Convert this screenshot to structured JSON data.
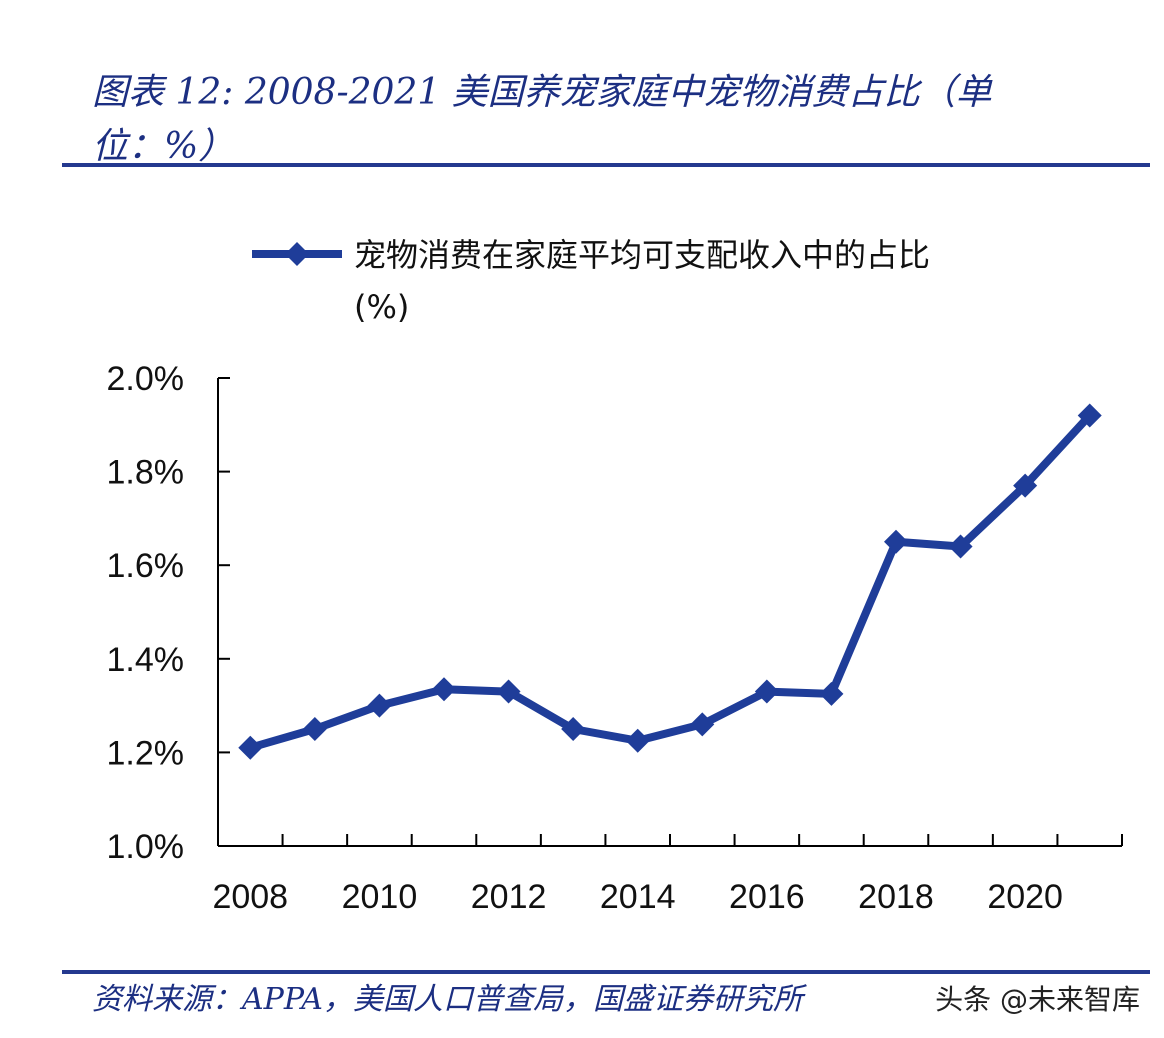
{
  "title": "图表 12: 2008-2021 美国养宠家庭中宠物消费占比（单位：%）",
  "source": "资料来源：APPA，美国人口普查局，国盛证券研究所",
  "watermark": "头条 @未来智库",
  "colors": {
    "series": "#1f3d99",
    "rule": "#24398f",
    "axis": "#000000"
  },
  "chart_data": {
    "type": "line",
    "x": [
      2008,
      2009,
      2010,
      2011,
      2012,
      2013,
      2014,
      2015,
      2016,
      2017,
      2018,
      2019,
      2020,
      2021
    ],
    "series": [
      {
        "name": "宠物消费在家庭平均可支配收入中的占比(%)",
        "values": [
          1.21,
          1.25,
          1.3,
          1.335,
          1.33,
          1.25,
          1.225,
          1.26,
          1.33,
          1.325,
          1.65,
          1.64,
          1.77,
          1.92
        ]
      }
    ],
    "ylim": [
      1.0,
      2.0
    ],
    "yticks": [
      1.0,
      1.2,
      1.4,
      1.6,
      1.8,
      2.0
    ],
    "ytick_labels": [
      "1.0%",
      "1.2%",
      "1.4%",
      "1.6%",
      "1.8%",
      "2.0%"
    ],
    "xtick_labels": [
      "2008",
      "2010",
      "2012",
      "2014",
      "2016",
      "2018",
      "2020"
    ],
    "marker": "diamond",
    "legend_position": "top-left",
    "grid": false
  }
}
